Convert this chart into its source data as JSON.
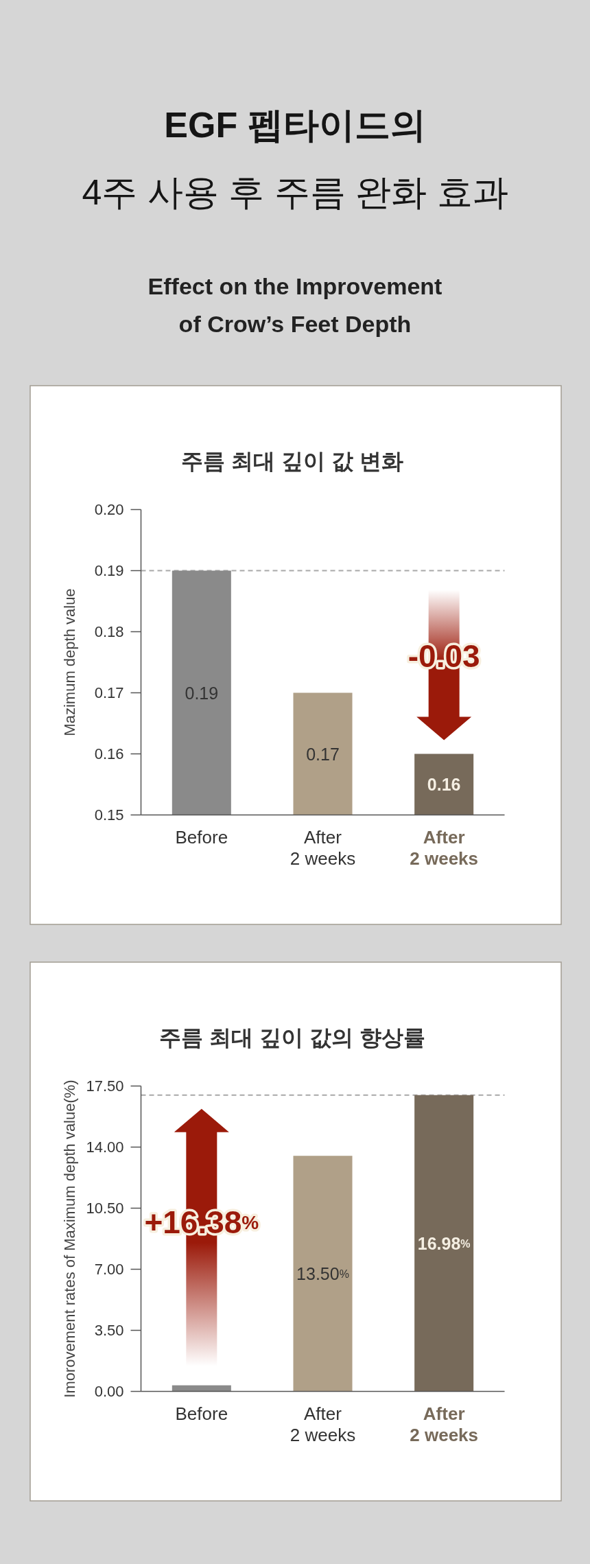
{
  "chart_data": [
    {
      "type": "other",
      "title": "EGF 펩타이드의\n4주 사용 후 주름 완화 효과",
      "subtitle": "Effect on the Improvement\nof Crow’s Feet Depth"
    },
    {
      "type": "bar",
      "title": "주름 최대 깊이 값 변화",
      "ylabel": "Mazimum depth value",
      "categories": [
        "Before",
        "After\n2 weeks",
        "After\n2 weeks"
      ],
      "values": [
        0.19,
        0.17,
        0.16
      ],
      "colors": [
        "#8a8a8a",
        "#b0a088",
        "#776a5a"
      ],
      "ylim": [
        0.15,
        0.2
      ],
      "yticks": [
        0.15,
        0.16,
        0.17,
        0.18,
        0.19,
        {
          "value": 0.2,
          "label": "0.20"
        }
      ],
      "data_labels": true,
      "ref_lines": [
        {
          "axis": "y",
          "value": 0.19,
          "color": "#a8a8a8",
          "line_style": "dashed"
        }
      ],
      "annotations": [
        "-0.03"
      ]
    },
    {
      "type": "bar",
      "title": "주름 최대 깊이 값의 향상률",
      "ylabel": "Imorovement rates of Maximum depth value(%)",
      "categories": [
        "Before",
        "After\n2 weeks",
        "After\n2 weeks"
      ],
      "values": [
        0.35,
        13.5,
        16.98
      ],
      "colors": [
        "#8a8a8a",
        "#b0a088",
        "#776a5a"
      ],
      "ylim": [
        0,
        17.5
      ],
      "yticks": [
        {
          "value": 0,
          "label": "0.00"
        },
        {
          "value": 3.5,
          "label": "3.50"
        },
        {
          "value": 7,
          "label": "7.00"
        },
        {
          "value": 10.5,
          "label": "10.50"
        },
        {
          "value": 14,
          "label": "14.00"
        },
        {
          "value": 17.5,
          "label": "17.50"
        }
      ],
      "value_labels": [
        null,
        "13.50%",
        "16.98%"
      ],
      "ref_lines": [
        {
          "axis": "y",
          "value": 16.98,
          "color": "#a8a8a8",
          "line_style": "dashed"
        }
      ],
      "annotations": [
        "+16.38%"
      ]
    }
  ]
}
